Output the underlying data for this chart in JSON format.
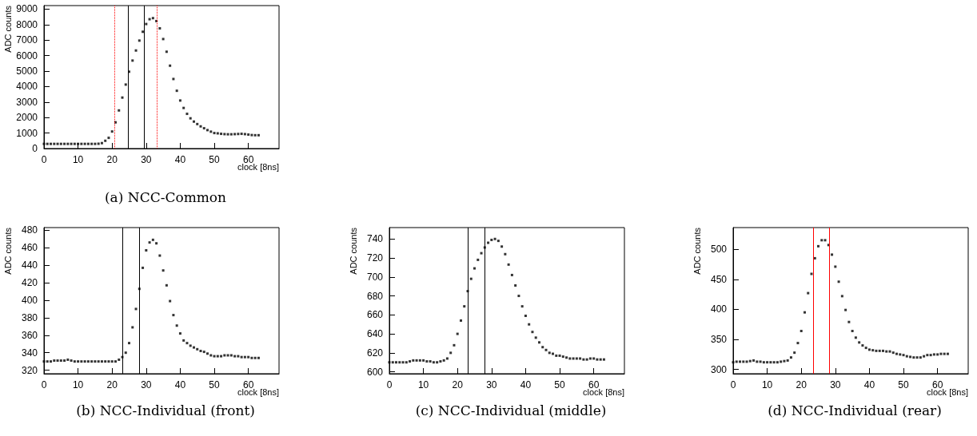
{
  "chart_data": [
    {
      "type": "scatter",
      "title": "(a) NCC-Common",
      "xlabel": "clock [8ns]",
      "ylabel": "ADC counts",
      "marker": "square",
      "grid": false,
      "x": [
        0,
        1,
        2,
        3,
        4,
        5,
        6,
        7,
        8,
        9,
        10,
        11,
        12,
        13,
        14,
        15,
        16,
        17,
        18,
        19,
        20,
        21,
        22,
        23,
        24,
        25,
        26,
        27,
        28,
        29,
        30,
        31,
        32,
        33,
        34,
        35,
        36,
        37,
        38,
        39,
        40,
        41,
        42,
        43,
        44,
        45,
        46,
        47,
        48,
        49,
        50,
        51,
        52,
        53,
        54,
        55,
        56,
        57,
        58,
        59,
        60,
        61,
        62,
        63
      ],
      "series": [
        {
          "color": "#000000",
          "values": [
            300,
            300,
            300,
            300,
            300,
            300,
            300,
            300,
            300,
            300,
            300,
            300,
            300,
            300,
            300,
            300,
            310,
            350,
            500,
            690,
            1100,
            1690,
            2460,
            3290,
            4130,
            4960,
            5680,
            6330,
            6970,
            7540,
            8040,
            8350,
            8420,
            8230,
            7760,
            7070,
            6250,
            5350,
            4490,
            3730,
            3100,
            2620,
            2240,
            1950,
            1740,
            1580,
            1430,
            1310,
            1190,
            1090,
            1000,
            980,
            950,
            930,
            920,
            920,
            930,
            940,
            950,
            930,
            900,
            870,
            860,
            860
          ]
        }
      ],
      "xlim": [
        0,
        69
      ],
      "xticks": [
        0,
        10,
        20,
        30,
        40,
        50,
        60
      ],
      "ylim": [
        0,
        9230
      ],
      "yticks": [
        0,
        1000,
        2000,
        3000,
        4000,
        5000,
        6000,
        7000,
        8000,
        9000
      ],
      "ref_lines": [
        {
          "axis": "x",
          "value": 24.6,
          "color": "#000000",
          "line_style": "solid"
        },
        {
          "axis": "x",
          "value": 29.4,
          "color": "#000000",
          "line_style": "solid"
        },
        {
          "axis": "x",
          "value": 20.6,
          "color": "#ff0000",
          "line_style": "dotted"
        },
        {
          "axis": "x",
          "value": 33.1,
          "color": "#ff0000",
          "line_style": "dotted"
        }
      ]
    },
    {
      "type": "scatter",
      "title": "(b) NCC-Individual (front)",
      "xlabel": "clock [8ns]",
      "ylabel": "ADC counts",
      "marker": "square",
      "grid": false,
      "x": [
        0,
        1,
        2,
        3,
        4,
        5,
        6,
        7,
        8,
        9,
        10,
        11,
        12,
        13,
        14,
        15,
        16,
        17,
        18,
        19,
        20,
        21,
        22,
        23,
        24,
        25,
        26,
        27,
        28,
        29,
        30,
        31,
        32,
        33,
        34,
        35,
        36,
        37,
        38,
        39,
        40,
        41,
        42,
        43,
        44,
        45,
        46,
        47,
        48,
        49,
        50,
        51,
        52,
        53,
        54,
        55,
        56,
        57,
        58,
        59,
        60,
        61,
        62,
        63
      ],
      "series": [
        {
          "color": "#000000",
          "values": [
            330,
            330,
            330,
            331,
            331,
            331,
            331,
            332,
            331,
            330,
            330,
            330,
            330,
            330,
            330,
            330,
            330,
            330,
            330,
            330,
            330,
            330,
            332,
            335,
            340,
            351,
            369,
            390,
            413,
            437,
            457,
            466,
            469,
            465,
            451,
            434,
            417,
            399,
            383,
            371,
            362,
            354,
            351,
            348,
            346,
            344,
            342,
            341,
            339,
            337,
            336,
            336,
            336,
            337,
            337,
            337,
            336,
            336,
            335,
            335,
            335,
            334,
            334,
            334
          ]
        }
      ],
      "xlim": [
        0,
        69
      ],
      "xticks": [
        0,
        10,
        20,
        30,
        40,
        50,
        60
      ],
      "ylim": [
        316,
        483
      ],
      "yticks": [
        320,
        340,
        360,
        380,
        400,
        420,
        440,
        460,
        480
      ],
      "ref_lines": [
        {
          "axis": "x",
          "value": 23,
          "color": "#000000",
          "line_style": "solid"
        },
        {
          "axis": "x",
          "value": 28,
          "color": "#000000",
          "line_style": "solid"
        }
      ]
    },
    {
      "type": "scatter",
      "title": "(c) NCC-Individual (middle)",
      "xlabel": "clock [8ns]",
      "ylabel": "ADC counts",
      "marker": "square",
      "grid": false,
      "x": [
        0,
        1,
        2,
        3,
        4,
        5,
        6,
        7,
        8,
        9,
        10,
        11,
        12,
        13,
        14,
        15,
        16,
        17,
        18,
        19,
        20,
        21,
        22,
        23,
        24,
        25,
        26,
        27,
        28,
        29,
        30,
        31,
        32,
        33,
        34,
        35,
        36,
        37,
        38,
        39,
        40,
        41,
        42,
        43,
        44,
        45,
        46,
        47,
        48,
        49,
        50,
        51,
        52,
        53,
        54,
        55,
        56,
        57,
        58,
        59,
        60,
        61,
        62,
        63
      ],
      "series": [
        {
          "color": "#000000",
          "values": [
            610,
            610,
            610,
            610,
            610,
            610,
            611,
            612,
            612,
            612,
            612,
            611,
            611,
            610,
            610,
            611,
            612,
            614,
            620,
            628,
            640,
            654,
            669,
            685,
            698,
            709,
            718,
            725,
            731,
            736,
            739,
            740,
            738,
            732,
            724,
            713,
            702,
            691,
            680,
            669,
            659,
            650,
            642,
            636,
            631,
            626,
            623,
            620,
            619,
            617,
            617,
            616,
            615,
            614,
            614,
            614,
            614,
            613,
            613,
            614,
            614,
            613,
            613,
            613
          ]
        }
      ],
      "xlim": [
        0,
        69
      ],
      "xticks": [
        0,
        10,
        20,
        30,
        40,
        50,
        60
      ],
      "ylim": [
        598,
        752
      ],
      "yticks": [
        600,
        620,
        640,
        660,
        680,
        700,
        720,
        740
      ],
      "ref_lines": [
        {
          "axis": "x",
          "value": 23,
          "color": "#000000",
          "line_style": "solid"
        },
        {
          "axis": "x",
          "value": 28,
          "color": "#000000",
          "line_style": "solid"
        }
      ]
    },
    {
      "type": "scatter",
      "title": "(d) NCC-Individual (rear)",
      "xlabel": "clock [8ns]",
      "ylabel": "ADC counts",
      "marker": "square",
      "grid": false,
      "x": [
        0,
        1,
        2,
        3,
        4,
        5,
        6,
        7,
        8,
        9,
        10,
        11,
        12,
        13,
        14,
        15,
        16,
        17,
        18,
        19,
        20,
        21,
        22,
        23,
        24,
        25,
        26,
        27,
        28,
        29,
        30,
        31,
        32,
        33,
        34,
        35,
        36,
        37,
        38,
        39,
        40,
        41,
        42,
        43,
        44,
        45,
        46,
        47,
        48,
        49,
        50,
        51,
        52,
        53,
        54,
        55,
        56,
        57,
        58,
        59,
        60,
        61,
        62,
        63
      ],
      "series": [
        {
          "color": "#000000",
          "values": [
            312,
            313,
            313,
            313,
            313,
            314,
            315,
            313,
            313,
            312,
            312,
            312,
            312,
            312,
            313,
            314,
            315,
            320,
            328,
            344,
            364,
            395,
            427,
            459,
            485,
            505,
            515,
            515,
            507,
            491,
            471,
            446,
            422,
            399,
            379,
            364,
            353,
            345,
            340,
            336,
            333,
            332,
            331,
            331,
            331,
            330,
            330,
            328,
            326,
            325,
            324,
            322,
            321,
            320,
            320,
            320,
            322,
            324,
            324,
            325,
            325,
            326,
            326,
            326
          ]
        }
      ],
      "xlim": [
        0,
        69
      ],
      "xticks": [
        0,
        10,
        20,
        30,
        40,
        50,
        60
      ],
      "ylim": [
        293,
        536
      ],
      "yticks": [
        300,
        350,
        400,
        450,
        500
      ],
      "ref_lines": [
        {
          "axis": "x",
          "value": 23.5,
          "color": "#ff0000",
          "line_style": "solid"
        },
        {
          "axis": "x",
          "value": 28.3,
          "color": "#ff0000",
          "line_style": "solid"
        }
      ]
    }
  ]
}
